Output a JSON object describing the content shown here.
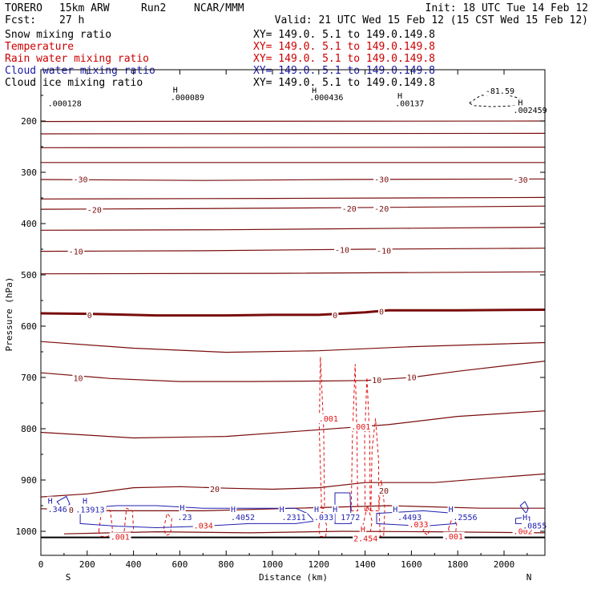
{
  "header": {
    "model": "TORERO",
    "resolution": "15km ARW",
    "run": "Run2",
    "org": "NCAR/MMM",
    "init": "Init: 18 UTC Tue 14 Feb 12",
    "fcst_label": "Fcst:",
    "fcst_value": "27 h",
    "valid": "Valid: 21 UTC Wed 15 Feb 12 (15 CST Wed 15 Feb 12)"
  },
  "legend": [
    {
      "name": "Snow mixing ratio",
      "xy": "XY= 149.0.  5.1 to 149.0.149.8",
      "color": "#000000"
    },
    {
      "name": "Temperature",
      "xy": "XY= 149.0.  5.1 to 149.0.149.8",
      "color": "#cc0000"
    },
    {
      "name": "Rain water mixing ratio",
      "xy": "XY= 149.0.  5.1 to 149.0.149.8",
      "color": "#cc0000"
    },
    {
      "name": "Cloud water mixing ratio",
      "xy": "XY= 149.0.  5.1 to 149.0.149.8",
      "color": "#1a1aa8"
    },
    {
      "name": "Cloud ice mixing ratio",
      "xy": "XY= 149.0.  5.1 to 149.0.149.8",
      "color": "#000000"
    }
  ],
  "chart_data": {
    "type": "cross-section contour",
    "xlabel": "Distance (km)",
    "ylabel": "Pressure (hPa)",
    "x_ticks": [
      0,
      200,
      400,
      600,
      800,
      1000,
      1200,
      1400,
      1600,
      1800,
      2000
    ],
    "x_tick_labels": [
      "0",
      "200",
      "400",
      "600",
      "800",
      "1000",
      "1200",
      "1400",
      "1600",
      "1800",
      "2000"
    ],
    "y_ticks": [
      200,
      300,
      400,
      500,
      600,
      700,
      800,
      900,
      1000
    ],
    "y_tick_labels": [
      "200",
      "300",
      "400",
      "500",
      "600",
      "700",
      "800",
      "900",
      "1000"
    ],
    "xlim": [
      0,
      2180
    ],
    "ylim": [
      1048,
      125
    ],
    "left_label": "S",
    "right_label": "N",
    "colors": {
      "temperature": "#7a0c0c",
      "rain": "#e01010",
      "cloud": "#1f1fb0",
      "snow_ice": "#000000"
    },
    "temperature_isotherms": [
      {
        "name": "lev1",
        "points": [
          [
            0,
            201
          ],
          [
            2180,
            200
          ]
        ]
      },
      {
        "name": "lev2",
        "points": [
          [
            0,
            225
          ],
          [
            2180,
            224
          ]
        ]
      },
      {
        "name": "lev3",
        "points": [
          [
            0,
            252
          ],
          [
            2180,
            251
          ]
        ]
      },
      {
        "name": "lev4",
        "points": [
          [
            0,
            281
          ],
          [
            2180,
            281
          ]
        ]
      },
      {
        "name": "t-30",
        "label": "-30",
        "points": [
          [
            0,
            314
          ],
          [
            700,
            316
          ],
          [
            1300,
            314
          ],
          [
            2180,
            313
          ]
        ]
      },
      {
        "name": "t-25",
        "points": [
          [
            0,
            352
          ],
          [
            1000,
            351
          ],
          [
            2180,
            349
          ]
        ]
      },
      {
        "name": "t-20",
        "label": "-20",
        "points": [
          [
            0,
            372
          ],
          [
            600,
            371
          ],
          [
            1300,
            369
          ],
          [
            2180,
            366
          ]
        ]
      },
      {
        "name": "t-15",
        "points": [
          [
            0,
            413
          ],
          [
            800,
            412
          ],
          [
            1600,
            409
          ],
          [
            2180,
            407
          ]
        ]
      },
      {
        "name": "t-10",
        "label": "-10",
        "points": [
          [
            0,
            454
          ],
          [
            700,
            453
          ],
          [
            1400,
            450
          ],
          [
            2180,
            448
          ]
        ]
      },
      {
        "name": "t-5",
        "points": [
          [
            0,
            498
          ],
          [
            1000,
            497
          ],
          [
            2180,
            494
          ]
        ]
      },
      {
        "name": "t0",
        "label": "0",
        "bold": true,
        "points": [
          [
            0,
            575
          ],
          [
            200,
            576
          ],
          [
            500,
            579
          ],
          [
            800,
            579
          ],
          [
            1000,
            578
          ],
          [
            1200,
            578
          ],
          [
            1400,
            573
          ],
          [
            1500,
            569
          ],
          [
            1600,
            569
          ],
          [
            1800,
            569
          ],
          [
            2180,
            568
          ]
        ]
      },
      {
        "name": "t5",
        "points": [
          [
            0,
            630
          ],
          [
            400,
            643
          ],
          [
            800,
            651
          ],
          [
            1200,
            648
          ],
          [
            1600,
            640
          ],
          [
            2180,
            632
          ]
        ]
      },
      {
        "name": "t10",
        "label": "10",
        "points": [
          [
            0,
            691
          ],
          [
            300,
            702
          ],
          [
            600,
            708
          ],
          [
            900,
            708
          ],
          [
            1200,
            707
          ],
          [
            1400,
            706
          ],
          [
            1600,
            700
          ],
          [
            1800,
            688
          ],
          [
            2180,
            668
          ]
        ]
      },
      {
        "name": "t15",
        "points": [
          [
            0,
            807
          ],
          [
            400,
            818
          ],
          [
            800,
            815
          ],
          [
            1200,
            802
          ],
          [
            1500,
            792
          ],
          [
            1800,
            776
          ],
          [
            2180,
            765
          ]
        ]
      },
      {
        "name": "t20",
        "label": "20",
        "points": [
          [
            0,
            933
          ],
          [
            200,
            927
          ],
          [
            400,
            915
          ],
          [
            600,
            913
          ],
          [
            800,
            916
          ],
          [
            1000,
            918
          ],
          [
            1200,
            915
          ],
          [
            1400,
            905
          ],
          [
            1700,
            905
          ],
          [
            2000,
            894
          ],
          [
            2180,
            888
          ]
        ]
      },
      {
        "name": "t25",
        "points": [
          [
            0,
            956
          ],
          [
            300,
            960
          ],
          [
            700,
            960
          ],
          [
            1100,
            955
          ],
          [
            1500,
            950
          ],
          [
            1900,
            955
          ],
          [
            2180,
            955
          ]
        ]
      },
      {
        "name": "t30",
        "points": [
          [
            100,
            1005
          ],
          [
            500,
            1001
          ],
          [
            900,
            1003
          ],
          [
            1300,
            1000
          ],
          [
            1700,
            1001
          ],
          [
            2180,
            1003
          ]
        ]
      }
    ],
    "temperature_labels": [
      {
        "text": "-30",
        "x": 140,
        "p": 313
      },
      {
        "text": "-30",
        "x": 1440,
        "p": 313
      },
      {
        "text": "-30",
        "x": 2040,
        "p": 314
      },
      {
        "text": "-20",
        "x": 200,
        "p": 373
      },
      {
        "text": "-20",
        "x": 1300,
        "p": 370
      },
      {
        "text": "-20",
        "x": 1440,
        "p": 370
      },
      {
        "text": "-10",
        "x": 120,
        "p": 454
      },
      {
        "text": "-10",
        "x": 1270,
        "p": 451
      },
      {
        "text": "-10",
        "x": 1450,
        "p": 452
      },
      {
        "text": "0",
        "x": 200,
        "p": 578
      },
      {
        "text": "0",
        "x": 1260,
        "p": 578
      },
      {
        "text": "0",
        "x": 1460,
        "p": 571
      },
      {
        "text": "10",
        "x": 140,
        "p": 701
      },
      {
        "text": "10",
        "x": 1430,
        "p": 705
      },
      {
        "text": "10",
        "x": 1580,
        "p": 699
      },
      {
        "text": "20",
        "x": 730,
        "p": 917
      },
      {
        "text": "20",
        "x": 1460,
        "p": 920
      },
      {
        "text": "20",
        "x": 100,
        "p": 958
      }
    ],
    "rain_contours": [
      {
        "name": "rain-plume-1",
        "points": [
          [
            1212,
            955
          ],
          [
            1202,
            800
          ],
          [
            1207,
            660
          ],
          [
            1221,
            800
          ],
          [
            1225,
            955
          ]
        ]
      },
      {
        "name": "rain-plume-2",
        "points": [
          [
            1340,
            960
          ],
          [
            1345,
            820
          ],
          [
            1357,
            674
          ],
          [
            1365,
            820
          ],
          [
            1368,
            960
          ]
        ]
      },
      {
        "name": "rain-plume-3",
        "points": [
          [
            1400,
            960
          ],
          [
            1398,
            820
          ],
          [
            1408,
            700
          ],
          [
            1420,
            820
          ],
          [
            1422,
            960
          ]
        ]
      },
      {
        "name": "rain-plume-4",
        "points": [
          [
            1425,
            960
          ],
          [
            1430,
            840
          ],
          [
            1445,
            780
          ],
          [
            1458,
            860
          ],
          [
            1460,
            960
          ]
        ]
      },
      {
        "name": "rain-low-1",
        "points": [
          [
            1460,
            950
          ],
          [
            1470,
            900
          ],
          [
            1485,
            955
          ],
          [
            1480,
            1010
          ],
          [
            1465,
            1010
          ]
        ]
      },
      {
        "name": "rain-low-2",
        "points": [
          [
            1390,
            990
          ],
          [
            1410,
            950
          ],
          [
            1430,
            980
          ],
          [
            1420,
            1010
          ],
          [
            1400,
            1010
          ]
        ]
      },
      {
        "name": "rain-low-3",
        "points": [
          [
            1200,
            990
          ],
          [
            1215,
            960
          ],
          [
            1235,
            990
          ],
          [
            1230,
            1010
          ],
          [
            1205,
            1010
          ]
        ]
      },
      {
        "name": "rain-s1",
        "points": [
          [
            250,
            1000
          ],
          [
            265,
            950
          ],
          [
            300,
            960
          ],
          [
            310,
            1000
          ],
          [
            290,
            1010
          ],
          [
            260,
            1010
          ]
        ]
      },
      {
        "name": "rain-s2",
        "points": [
          [
            360,
            1000
          ],
          [
            370,
            955
          ],
          [
            395,
            960
          ],
          [
            400,
            995
          ],
          [
            380,
            1008
          ]
        ]
      },
      {
        "name": "rain-s3",
        "points": [
          [
            530,
            995
          ],
          [
            545,
            965
          ],
          [
            565,
            975
          ],
          [
            560,
            1005
          ],
          [
            540,
            1008
          ]
        ]
      },
      {
        "name": "rain-s4",
        "points": [
          [
            1760,
            995
          ],
          [
            1775,
            975
          ],
          [
            1795,
            985
          ],
          [
            1790,
            1008
          ],
          [
            1768,
            1008
          ]
        ]
      },
      {
        "name": "rain-s5",
        "points": [
          [
            1650,
            1000
          ],
          [
            1665,
            985
          ],
          [
            1680,
            995
          ],
          [
            1670,
            1008
          ]
        ]
      }
    ],
    "rain_labels": [
      {
        "text": ".001",
        "x": 1200,
        "p": 780
      },
      {
        "text": ".001",
        "x": 1340,
        "p": 795
      },
      {
        "text": ".001",
        "x": 300,
        "p": 1010
      },
      {
        "text": ".001",
        "x": 1740,
        "p": 1009
      },
      {
        "text": ".002",
        "x": 2040,
        "p": 999
      },
      {
        "text": ".034",
        "x": 660,
        "p": 988
      },
      {
        "text": ".033",
        "x": 1590,
        "p": 986
      },
      {
        "text": "2.454",
        "x": 1350,
        "p": 1013
      },
      {
        "text": "H",
        "x": 1380,
        "p": 995
      }
    ],
    "cloud_contours": [
      {
        "name": "cw-1",
        "points": [
          [
            170,
            955
          ],
          [
            330,
            950
          ],
          [
            500,
            950
          ],
          [
            700,
            955
          ],
          [
            900,
            955
          ],
          [
            1100,
            955
          ],
          [
            1150,
            965
          ],
          [
            1180,
            980
          ],
          [
            1100,
            985
          ],
          [
            900,
            985
          ],
          [
            700,
            990
          ],
          [
            500,
            993
          ],
          [
            330,
            990
          ],
          [
            170,
            985
          ]
        ]
      },
      {
        "name": "cw-2",
        "points": [
          [
            1270,
            925
          ],
          [
            1335,
            925
          ],
          [
            1340,
            985
          ],
          [
            1270,
            985
          ]
        ]
      },
      {
        "name": "cw-3",
        "points": [
          [
            1450,
            965
          ],
          [
            1650,
            960
          ],
          [
            1790,
            965
          ],
          [
            1790,
            985
          ],
          [
            1650,
            990
          ],
          [
            1450,
            985
          ]
        ]
      },
      {
        "name": "cw-4",
        "points": [
          [
            2070,
            950
          ],
          [
            2090,
            942
          ],
          [
            2105,
            955
          ],
          [
            2095,
            965
          ]
        ]
      },
      {
        "name": "cw-5",
        "points": [
          [
            70,
            942
          ],
          [
            110,
            932
          ],
          [
            125,
            947
          ],
          [
            95,
            958
          ]
        ]
      },
      {
        "name": "cw-6",
        "points": [
          [
            2050,
            975
          ],
          [
            2110,
            972
          ],
          [
            2110,
            985
          ],
          [
            2050,
            985
          ]
        ]
      }
    ],
    "cloud_labels": [
      {
        "text": "H",
        "x": 30,
        "p": 940
      },
      {
        "text": ".346",
        "x": 30,
        "p": 956
      },
      {
        "text": "H",
        "x": 180,
        "p": 940
      },
      {
        "text": ".13913",
        "x": 150,
        "p": 957
      },
      {
        "text": "H",
        "x": 600,
        "p": 953
      },
      {
        "text": ".23",
        "x": 590,
        "p": 972
      },
      {
        "text": "H",
        "x": 820,
        "p": 956
      },
      {
        "text": ".4052",
        "x": 820,
        "p": 972
      },
      {
        "text": "H",
        "x": 1030,
        "p": 956
      },
      {
        "text": ".2311",
        "x": 1040,
        "p": 972
      },
      {
        "text": "H",
        "x": 1180,
        "p": 956
      },
      {
        "text": ".033",
        "x": 1180,
        "p": 972
      },
      {
        "text": "H",
        "x": 1260,
        "p": 956
      },
      {
        "text": "1772",
        "x": 1295,
        "p": 972
      },
      {
        "text": "H",
        "x": 1520,
        "p": 956
      },
      {
        "text": ".4493",
        "x": 1540,
        "p": 972
      },
      {
        "text": "H",
        "x": 1760,
        "p": 956
      },
      {
        "text": ".2556",
        "x": 1780,
        "p": 972
      },
      {
        "text": "H",
        "x": 2080,
        "p": 972
      },
      {
        "text": ".0855",
        "x": 2080,
        "p": 988
      }
    ],
    "ice_labels": [
      {
        "text": "H",
        "x": 570,
        "p": 138
      },
      {
        "text": ".000089",
        "x": 560,
        "p": 153
      },
      {
        "text": ".000128",
        "x": 30,
        "p": 165
      },
      {
        "text": "H",
        "x": 1170,
        "p": 140
      },
      {
        "text": ".000436",
        "x": 1160,
        "p": 153
      },
      {
        "text": "H",
        "x": 1540,
        "p": 150
      },
      {
        "text": ".00137",
        "x": 1530,
        "p": 165
      },
      {
        "text": "-81.59",
        "x": 1920,
        "p": 141
      },
      {
        "text": "H",
        "x": 2060,
        "p": 163
      },
      {
        "text": ".002459",
        "x": 2040,
        "p": 178
      }
    ]
  }
}
